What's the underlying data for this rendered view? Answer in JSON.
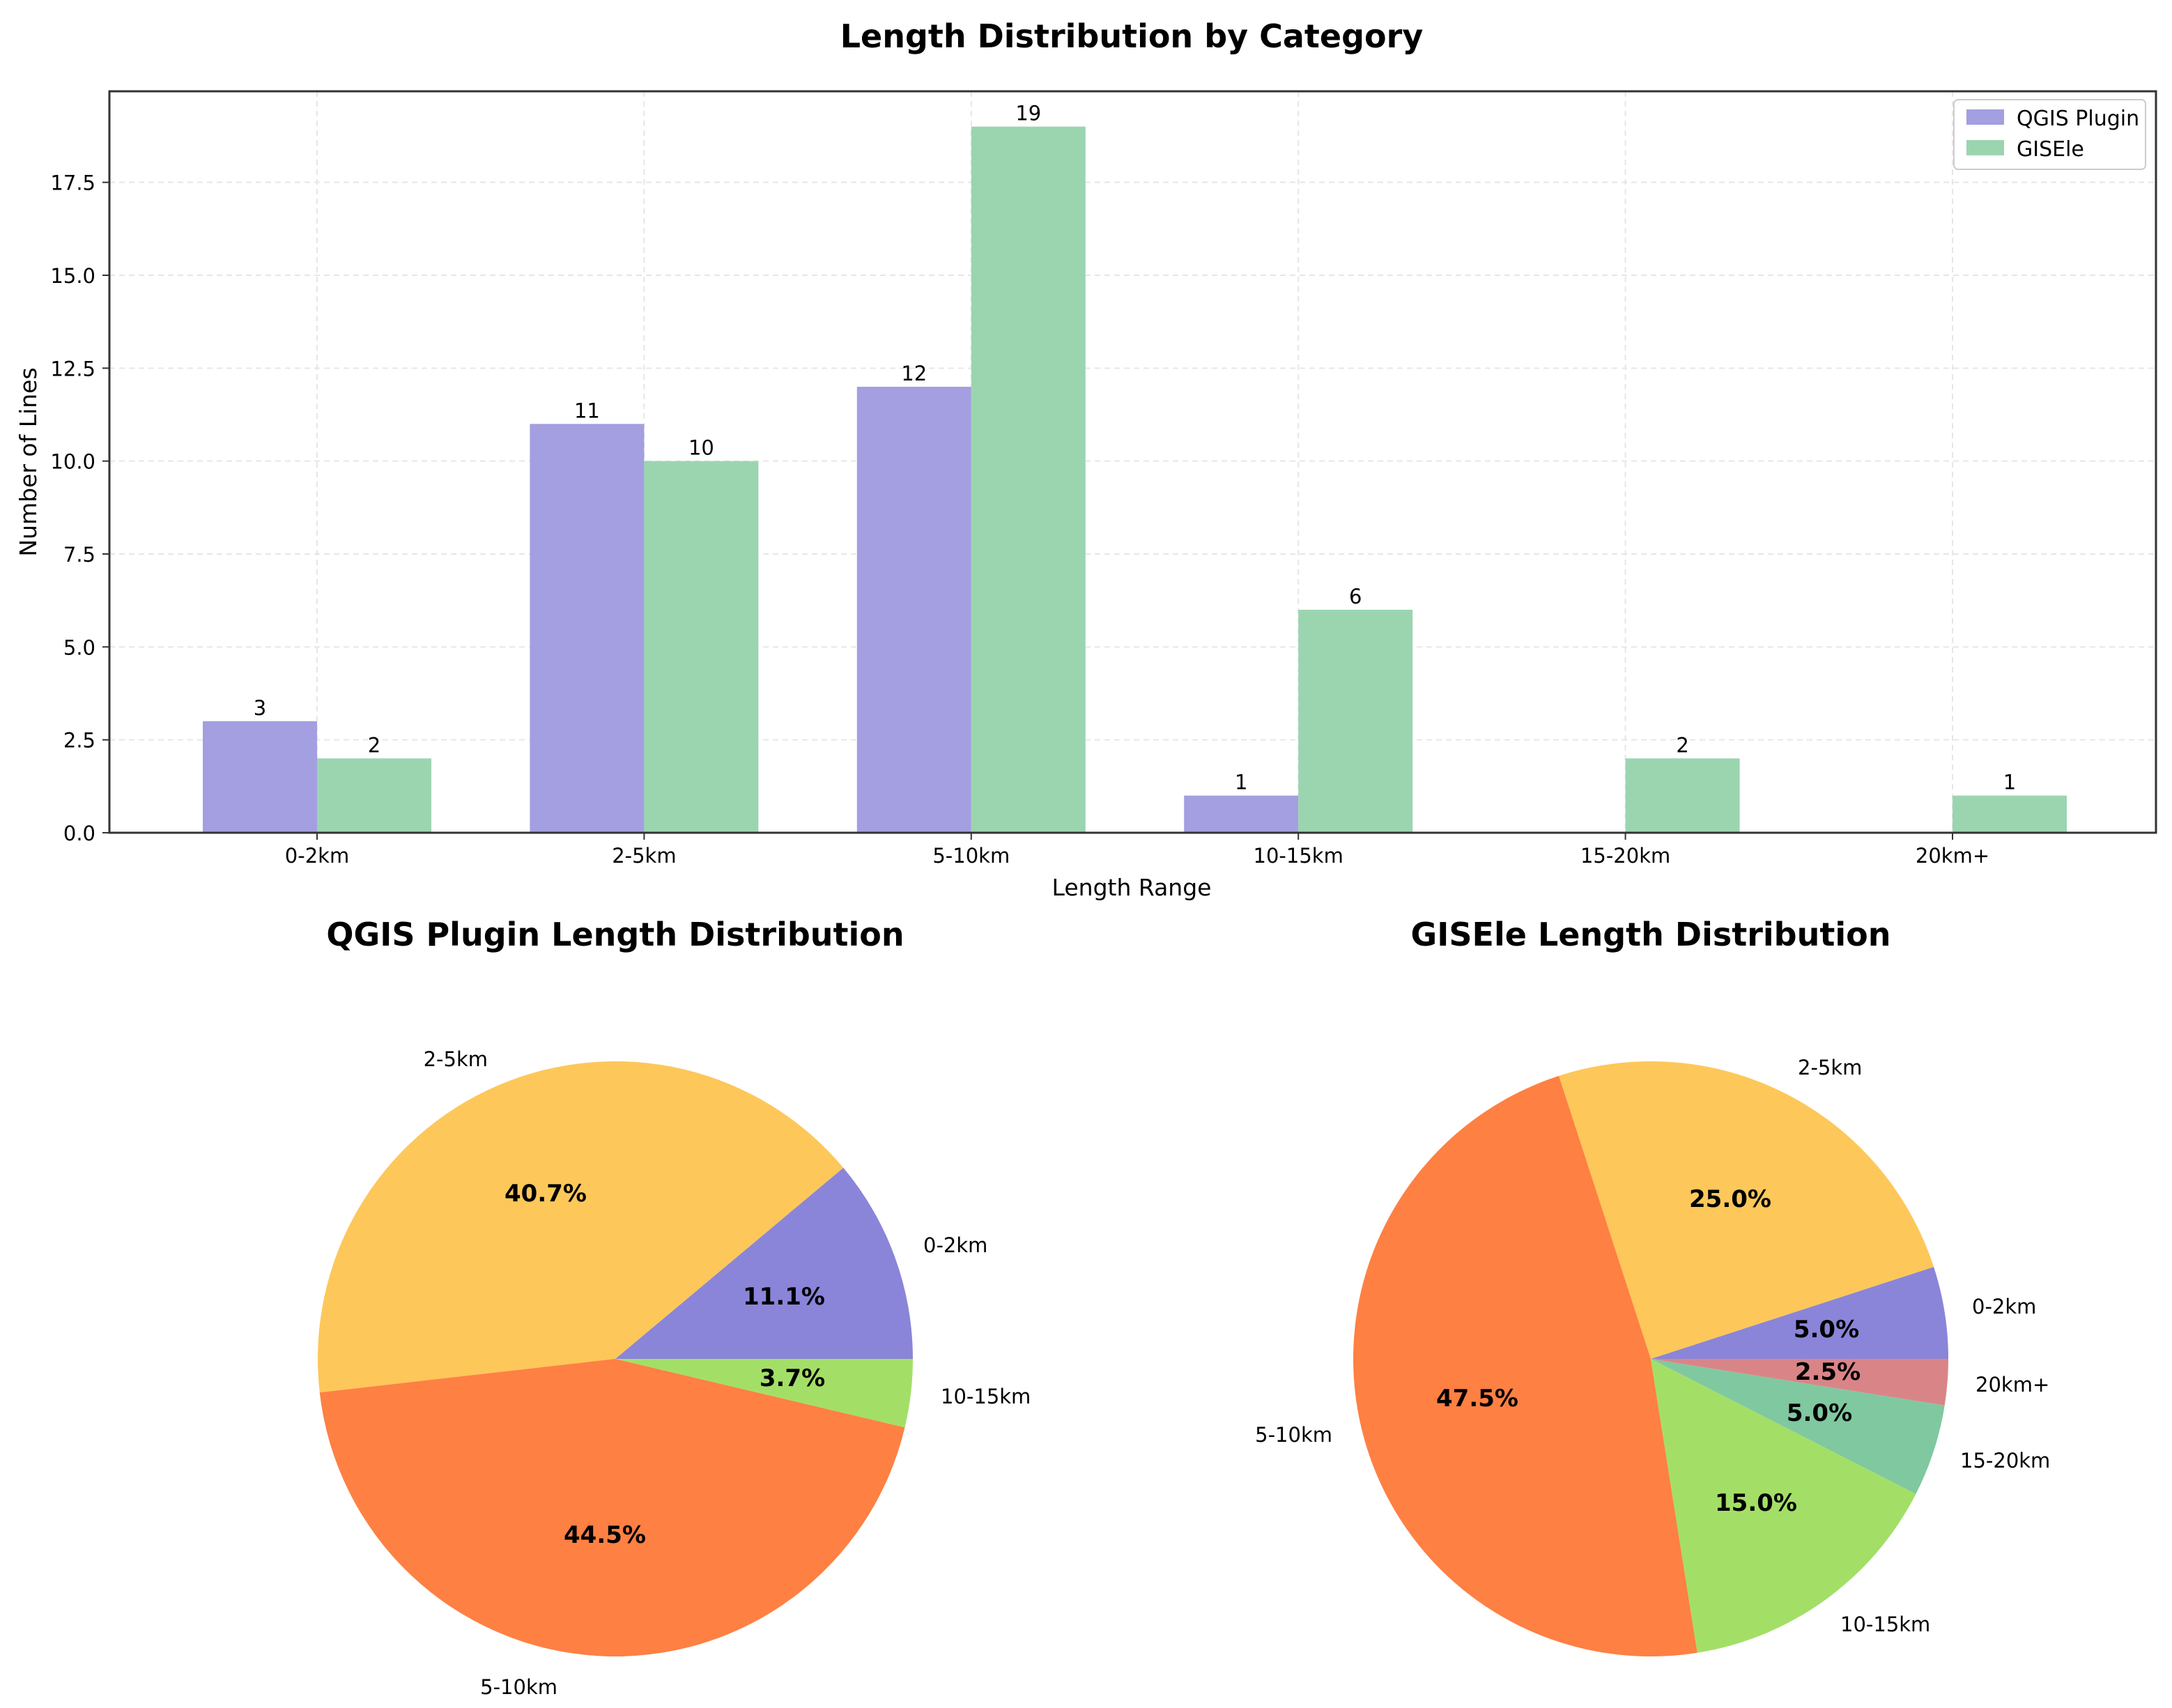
{
  "colors": {
    "qgis": "#a39fe0",
    "gisele": "#9bd5b0",
    "pie_0_2": "#8a85d8",
    "pie_2_5": "#fdc75a",
    "pie_5_10": "#fe8043",
    "pie_10_15": "#a3df67",
    "pie_15_20": "#80c8a0",
    "pie_20p": "#d98587"
  },
  "chart_data": [
    {
      "type": "bar",
      "title": "Length Distribution by Category",
      "xlabel": "Length Range",
      "ylabel": "Number of Lines",
      "categories": [
        "0-2km",
        "2-5km",
        "5-10km",
        "10-15km",
        "15-20km",
        "20km+"
      ],
      "series": [
        {
          "name": "QGIS Plugin",
          "values": [
            3,
            11,
            12,
            1,
            0,
            0
          ]
        },
        {
          "name": "GISEle",
          "values": [
            2,
            10,
            19,
            6,
            2,
            1
          ]
        }
      ],
      "ylim": [
        0,
        20
      ],
      "yticks": [
        "0.0",
        "2.5",
        "5.0",
        "7.5",
        "10.0",
        "12.5",
        "15.0",
        "17.5"
      ],
      "grid": true,
      "legend": "top-right"
    },
    {
      "type": "pie",
      "title": "QGIS Plugin Length Distribution",
      "slices": [
        {
          "label": "0-2km",
          "value": 11.1,
          "pct": "11.1%",
          "color_key": "pie_0_2"
        },
        {
          "label": "2-5km",
          "value": 40.7,
          "pct": "40.7%",
          "color_key": "pie_2_5"
        },
        {
          "label": "5-10km",
          "value": 44.5,
          "pct": "44.5%",
          "color_key": "pie_5_10"
        },
        {
          "label": "10-15km",
          "value": 3.7,
          "pct": "3.7%",
          "color_key": "pie_10_15"
        }
      ]
    },
    {
      "type": "pie",
      "title": "GISEle Length Distribution",
      "slices": [
        {
          "label": "0-2km",
          "value": 5.0,
          "pct": "5.0%",
          "color_key": "pie_0_2"
        },
        {
          "label": "2-5km",
          "value": 25.0,
          "pct": "25.0%",
          "color_key": "pie_2_5"
        },
        {
          "label": "5-10km",
          "value": 47.5,
          "pct": "47.5%",
          "color_key": "pie_5_10"
        },
        {
          "label": "10-15km",
          "value": 15.0,
          "pct": "15.0%",
          "color_key": "pie_10_15"
        },
        {
          "label": "15-20km",
          "value": 5.0,
          "pct": "5.0%",
          "color_key": "pie_15_20"
        },
        {
          "label": "20km+",
          "value": 2.5,
          "pct": "2.5%",
          "color_key": "pie_20p"
        }
      ]
    }
  ]
}
